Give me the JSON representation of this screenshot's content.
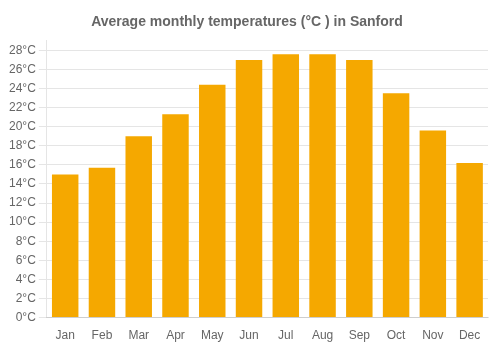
{
  "chart_data": {
    "type": "bar",
    "title": "Average monthly temperatures (°C ) in Sanford",
    "categories": [
      "Jan",
      "Feb",
      "Mar",
      "Apr",
      "May",
      "Jun",
      "Jul",
      "Aug",
      "Sep",
      "Oct",
      "Nov",
      "Dec"
    ],
    "values": [
      15.0,
      15.7,
      19.0,
      21.3,
      24.4,
      27.0,
      27.6,
      27.6,
      27.0,
      23.5,
      19.6,
      16.2
    ],
    "color": "#F5A800",
    "ylim": [
      0,
      29
    ],
    "yticks": [
      {
        "value": 0,
        "label": "0°C"
      },
      {
        "value": 2,
        "label": "2°C"
      },
      {
        "value": 4,
        "label": "4°C"
      },
      {
        "value": 6,
        "label": "6°C"
      },
      {
        "value": 8,
        "label": "8°C"
      },
      {
        "value": 10,
        "label": "10°C"
      },
      {
        "value": 12,
        "label": "12°C"
      },
      {
        "value": 14,
        "label": "14°C"
      },
      {
        "value": 16,
        "label": "16°C"
      },
      {
        "value": 18,
        "label": "18°C"
      },
      {
        "value": 20,
        "label": "20°C"
      },
      {
        "value": 22,
        "label": "22°C"
      },
      {
        "value": 24,
        "label": "24°C"
      },
      {
        "value": 26,
        "label": "26°C"
      },
      {
        "value": 28,
        "label": "28°C"
      }
    ],
    "grid": true
  }
}
